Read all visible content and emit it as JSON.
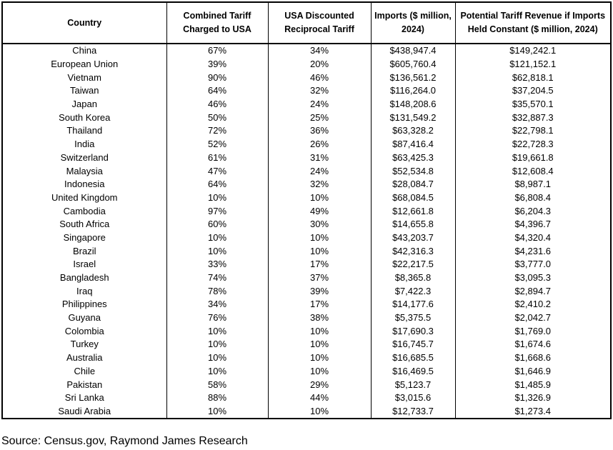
{
  "table": {
    "headers": [
      [
        "Country"
      ],
      [
        "Combined Tariff",
        "Charged to USA"
      ],
      [
        "USA Discounted",
        "Reciprocal Tariff"
      ],
      [
        "Imports ($ million,",
        "2024)"
      ],
      [
        "Potential Tariff Revenue if Imports",
        "Held Constant ($ million, 2024)"
      ]
    ],
    "rows": [
      [
        "China",
        "67%",
        "34%",
        "$438,947.4",
        "$149,242.1"
      ],
      [
        "European Union",
        "39%",
        "20%",
        "$605,760.4",
        "$121,152.1"
      ],
      [
        "Vietnam",
        "90%",
        "46%",
        "$136,561.2",
        "$62,818.1"
      ],
      [
        "Taiwan",
        "64%",
        "32%",
        "$116,264.0",
        "$37,204.5"
      ],
      [
        "Japan",
        "46%",
        "24%",
        "$148,208.6",
        "$35,570.1"
      ],
      [
        "South Korea",
        "50%",
        "25%",
        "$131,549.2",
        "$32,887.3"
      ],
      [
        "Thailand",
        "72%",
        "36%",
        "$63,328.2",
        "$22,798.1"
      ],
      [
        "India",
        "52%",
        "26%",
        "$87,416.4",
        "$22,728.3"
      ],
      [
        "Switzerland",
        "61%",
        "31%",
        "$63,425.3",
        "$19,661.8"
      ],
      [
        "Malaysia",
        "47%",
        "24%",
        "$52,534.8",
        "$12,608.4"
      ],
      [
        "Indonesia",
        "64%",
        "32%",
        "$28,084.7",
        "$8,987.1"
      ],
      [
        "United Kingdom",
        "10%",
        "10%",
        "$68,084.5",
        "$6,808.4"
      ],
      [
        "Cambodia",
        "97%",
        "49%",
        "$12,661.8",
        "$6,204.3"
      ],
      [
        "South Africa",
        "60%",
        "30%",
        "$14,655.8",
        "$4,396.7"
      ],
      [
        "Singapore",
        "10%",
        "10%",
        "$43,203.7",
        "$4,320.4"
      ],
      [
        "Brazil",
        "10%",
        "10%",
        "$42,316.3",
        "$4,231.6"
      ],
      [
        "Israel",
        "33%",
        "17%",
        "$22,217.5",
        "$3,777.0"
      ],
      [
        "Bangladesh",
        "74%",
        "37%",
        "$8,365.8",
        "$3,095.3"
      ],
      [
        "Iraq",
        "78%",
        "39%",
        "$7,422.3",
        "$2,894.7"
      ],
      [
        "Philippines",
        "34%",
        "17%",
        "$14,177.6",
        "$2,410.2"
      ],
      [
        "Guyana",
        "76%",
        "38%",
        "$5,375.5",
        "$2,042.7"
      ],
      [
        "Colombia",
        "10%",
        "10%",
        "$17,690.3",
        "$1,769.0"
      ],
      [
        "Turkey",
        "10%",
        "10%",
        "$16,745.7",
        "$1,674.6"
      ],
      [
        "Australia",
        "10%",
        "10%",
        "$16,685.5",
        "$1,668.6"
      ],
      [
        "Chile",
        "10%",
        "10%",
        "$16,469.5",
        "$1,646.9"
      ],
      [
        "Pakistan",
        "58%",
        "29%",
        "$5,123.7",
        "$1,485.9"
      ],
      [
        "Sri Lanka",
        "88%",
        "44%",
        "$3,015.6",
        "$1,326.9"
      ],
      [
        "Saudi Arabia",
        "10%",
        "10%",
        "$12,733.7",
        "$1,273.4"
      ]
    ]
  },
  "source": "Source: Census.gov, Raymond James Research"
}
